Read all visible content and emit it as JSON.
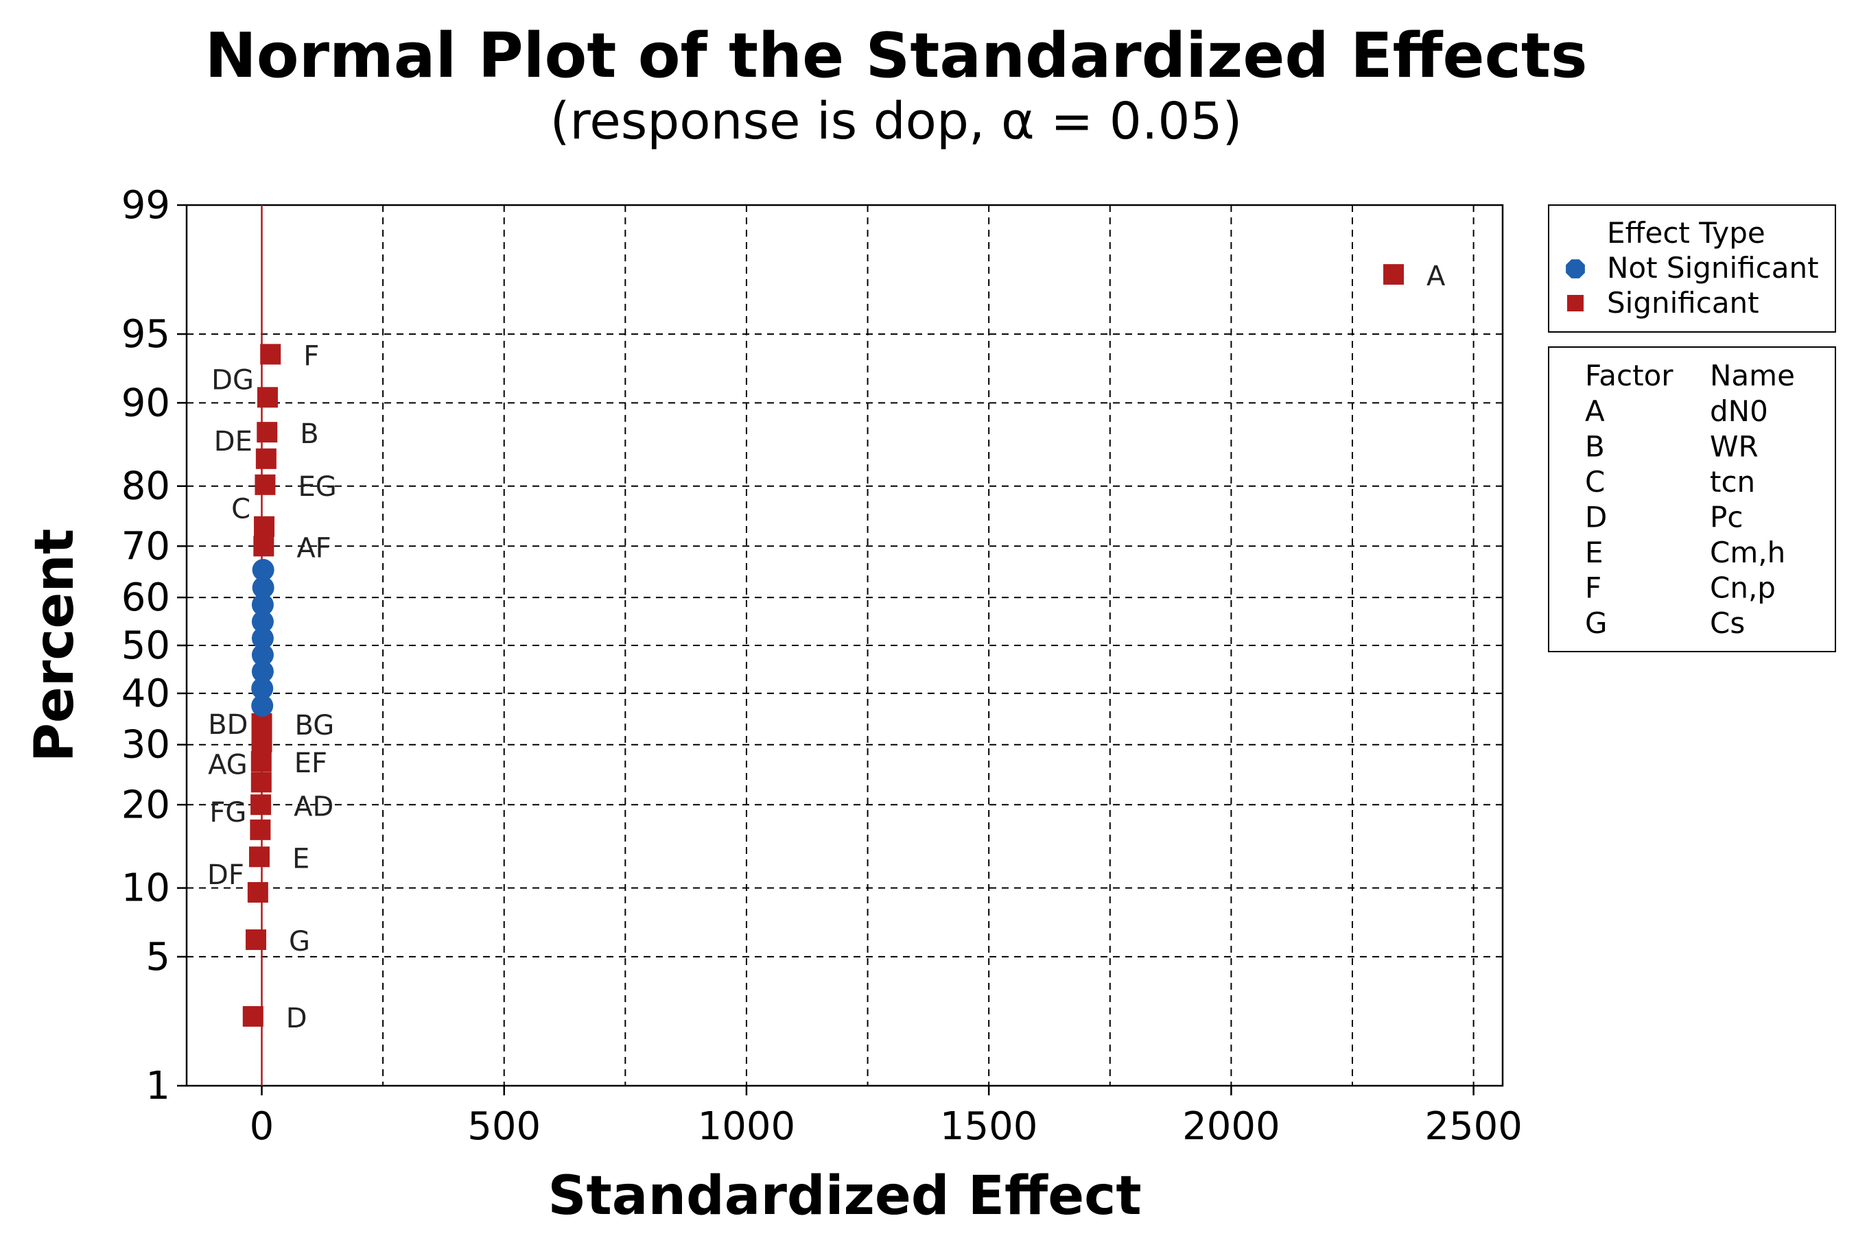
{
  "chart_data": {
    "type": "scatter",
    "title": "Normal Plot of the Standardized Effects",
    "subtitle": "(response is dop, α = 0.05)",
    "xlabel": "Standardized Effect",
    "ylabel": "Percent",
    "xlim": [
      -155,
      2560
    ],
    "x_ticks": [
      0,
      500,
      1000,
      1500,
      2000,
      2500
    ],
    "x_tick_labels": [
      "0",
      "500",
      "1000",
      "1500",
      "2000",
      "2500"
    ],
    "y_scale": "normal-probability",
    "y_ticks": [
      1,
      5,
      10,
      20,
      30,
      40,
      50,
      60,
      70,
      80,
      90,
      95,
      99
    ],
    "y_tick_labels": [
      "1",
      "5",
      "10",
      "20",
      "30",
      "40",
      "50",
      "60",
      "70",
      "80",
      "90",
      "95",
      "99"
    ],
    "x_grid": [
      250,
      500,
      750,
      1000,
      1250,
      1500,
      1750,
      2000,
      2250,
      2500
    ],
    "y_grid": [
      5,
      10,
      20,
      30,
      40,
      50,
      60,
      70,
      80,
      90,
      95
    ],
    "reference_line": {
      "x": 0,
      "color": "#b01c1c"
    },
    "legend": {
      "title": "Effect Type",
      "position": "right",
      "items": [
        {
          "label": "Not Significant",
          "marker": "circle",
          "color": "#1f5fb0"
        },
        {
          "label": "Significant",
          "marker": "square",
          "color": "#b01c1c"
        }
      ]
    },
    "factor_table": {
      "headers": [
        "Factor",
        "Name"
      ],
      "rows": [
        [
          "A",
          "dN0"
        ],
        [
          "B",
          "WR"
        ],
        [
          "C",
          "tcn"
        ],
        [
          "D",
          "Pc"
        ],
        [
          "E",
          "Cm,h"
        ],
        [
          "F",
          "Cn,p"
        ],
        [
          "G",
          "Cs"
        ]
      ]
    },
    "series": [
      {
        "name": "Significant",
        "marker": "square",
        "color": "#b01c1c",
        "points": [
          {
            "x": -18,
            "y": 2.5,
            "label": "D",
            "label_side": "right"
          },
          {
            "x": -12,
            "y": 6,
            "label": "G",
            "label_side": "right"
          },
          {
            "x": -8,
            "y": 9.6,
            "label": "DF",
            "label_side": "left"
          },
          {
            "x": -5,
            "y": 13.2,
            "label": "E",
            "label_side": "right"
          },
          {
            "x": -3,
            "y": 16.5,
            "label": "FG",
            "label_side": "left"
          },
          {
            "x": -2,
            "y": 20,
            "label": "AD",
            "label_side": "right"
          },
          {
            "x": -1,
            "y": 23.5,
            "label": "AG",
            "label_side": "left"
          },
          {
            "x": -1,
            "y": 27,
            "label": "EF",
            "label_side": "right"
          },
          {
            "x": 0,
            "y": 30.5,
            "label": "BD",
            "label_side": "left"
          },
          {
            "x": 0,
            "y": 34,
            "label": "BG",
            "label_side": "right"
          },
          {
            "x": 4,
            "y": 70,
            "label": "AF",
            "label_side": "right"
          },
          {
            "x": 5,
            "y": 73.5,
            "label": "C",
            "label_side": "left"
          },
          {
            "x": 7,
            "y": 80.2,
            "label": "EG",
            "label_side": "right"
          },
          {
            "x": 9,
            "y": 83.8,
            "label": "DE",
            "label_side": "left"
          },
          {
            "x": 11,
            "y": 87,
            "label": "B",
            "label_side": "right"
          },
          {
            "x": 12,
            "y": 90.5,
            "label": "DG",
            "label_side": "left"
          },
          {
            "x": 18,
            "y": 93.8,
            "label": "F",
            "label_side": "right"
          },
          {
            "x": 2335,
            "y": 97.5,
            "label": "A",
            "label_side": "right"
          }
        ]
      },
      {
        "name": "Not Significant",
        "marker": "circle",
        "color": "#1f5fb0",
        "points": [
          {
            "x": 1,
            "y": 37.5
          },
          {
            "x": 1,
            "y": 41
          },
          {
            "x": 2,
            "y": 44.5
          },
          {
            "x": 2,
            "y": 48
          },
          {
            "x": 2,
            "y": 51.5
          },
          {
            "x": 2,
            "y": 55
          },
          {
            "x": 2,
            "y": 58.5
          },
          {
            "x": 3,
            "y": 62
          },
          {
            "x": 3,
            "y": 65.5
          }
        ]
      }
    ]
  }
}
